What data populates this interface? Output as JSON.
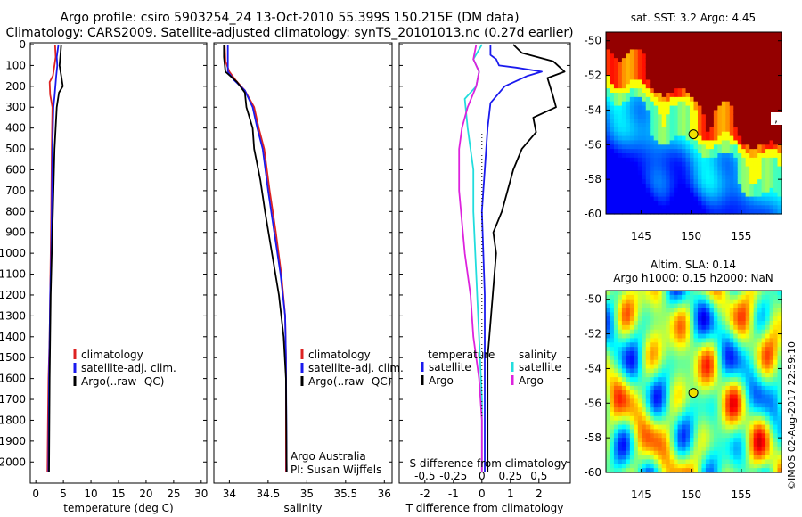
{
  "title": {
    "line1": "Argo profile: csiro 5903254_24 13-Oct-2010 55.399S 150.215E (DM data)",
    "line2": "Climatology: CARS2009. Satellite-adjusted climatology: synTS_20101013.nc (0.27d earlier)"
  },
  "stamp": "©IMOS 02-Aug-2017 22:59:10",
  "credits": {
    "line1": "Argo Australia",
    "line2": "PI: Susan Wijffels"
  },
  "colors": {
    "climatology": "#dd2222",
    "satellite": "#1a1aee",
    "argo": "#000000",
    "cyan": "#22dddd",
    "magenta": "#dd22dd"
  },
  "chart_data": [
    {
      "type": "line",
      "panel": "temperature",
      "xlabel": "temperature (deg C)",
      "ylim": [
        2080,
        0
      ],
      "xlim": [
        -1,
        31
      ],
      "xticks": [
        "0",
        "5",
        "10",
        "15",
        "20",
        "25",
        "30"
      ],
      "yticks": [
        "0",
        "100",
        "200",
        "300",
        "400",
        "500",
        "600",
        "700",
        "800",
        "900",
        "1000",
        "1100",
        "1200",
        "1300",
        "1400",
        "1500",
        "1600",
        "1700",
        "1800",
        "1900",
        "2000"
      ],
      "legend": [
        "climatology",
        "satellite-adj. clim.",
        "Argo(..raw -QC)"
      ],
      "series": [
        {
          "name": "climatology",
          "color_key": "climatology",
          "x": [
            3.5,
            3.6,
            3.1,
            2.5,
            2.6,
            3.0,
            2.9,
            2.8,
            2.7,
            2.6,
            2.5,
            2.3,
            2.2,
            2.1
          ],
          "y": [
            0,
            60,
            150,
            180,
            240,
            300,
            500,
            800,
            1000,
            1200,
            1400,
            1600,
            1800,
            2050
          ]
        },
        {
          "name": "satellite-adj. clim.",
          "color_key": "satellite",
          "x": [
            4.1,
            3.8,
            3.9,
            3.7,
            3.4,
            3.2,
            3.0,
            2.9,
            2.8,
            2.6,
            2.5,
            2.4,
            2.3
          ],
          "y": [
            0,
            60,
            100,
            150,
            250,
            300,
            500,
            800,
            1000,
            1200,
            1400,
            1600,
            2050
          ]
        },
        {
          "name": "Argo(..raw -QC)",
          "color_key": "argo",
          "x": [
            4.6,
            4.5,
            4.3,
            4.6,
            4.9,
            4.2,
            3.8,
            3.4,
            3.1,
            2.9,
            2.7,
            2.6,
            2.5,
            2.4
          ],
          "y": [
            0,
            40,
            100,
            150,
            200,
            230,
            300,
            500,
            800,
            1000,
            1200,
            1400,
            1600,
            2050
          ]
        }
      ]
    },
    {
      "type": "line",
      "panel": "salinity",
      "xlabel": "salinity",
      "ylim": [
        2080,
        0
      ],
      "xlim": [
        33.8,
        36.1
      ],
      "xticks": [
        "34",
        "34.5",
        "35",
        "35.5",
        "36"
      ],
      "legend": [
        "climatology",
        "satellite-adj. clim.",
        "Argo(..raw -QC)"
      ],
      "series": [
        {
          "name": "climatology",
          "color_key": "climatology",
          "x": [
            33.94,
            33.95,
            34.0,
            34.08,
            34.2,
            34.32,
            34.38,
            34.45,
            34.52,
            34.6,
            34.67,
            34.72,
            34.73,
            34.73
          ],
          "y": [
            0,
            80,
            130,
            170,
            220,
            300,
            400,
            500,
            700,
            900,
            1100,
            1300,
            1500,
            2050
          ]
        },
        {
          "name": "satellite-adj. clim.",
          "color_key": "satellite",
          "x": [
            33.98,
            33.98,
            33.98,
            34.06,
            34.2,
            34.3,
            34.36,
            34.43,
            34.5,
            34.58,
            34.66,
            34.72,
            34.73,
            34.74
          ],
          "y": [
            0,
            80,
            130,
            170,
            220,
            300,
            400,
            500,
            700,
            900,
            1100,
            1300,
            1500,
            2050
          ]
        },
        {
          "name": "Argo(..raw -QC)",
          "color_key": "argo",
          "x": [
            33.93,
            33.93,
            33.95,
            34.1,
            34.2,
            34.22,
            34.3,
            34.32,
            34.4,
            34.46,
            34.55,
            34.64,
            34.7,
            34.73,
            34.74
          ],
          "y": [
            0,
            60,
            130,
            180,
            230,
            300,
            400,
            500,
            650,
            800,
            1000,
            1200,
            1400,
            1600,
            2050
          ]
        }
      ]
    },
    {
      "type": "line",
      "panel": "difference",
      "xlabel": "T difference from climatology",
      "xlabel_top": "S difference from climatology",
      "ylim": [
        2080,
        0
      ],
      "xlim": [
        -2.9,
        3.1
      ],
      "xticks": [
        "-2",
        "-1",
        "0",
        "1",
        "2"
      ],
      "xticks_s": [
        "-0.5",
        "-0.25",
        "0",
        "0.25",
        "0.5"
      ],
      "legend_headers": [
        "temperature",
        "salinity"
      ],
      "legend_left": [
        "satellite",
        "Argo"
      ],
      "legend_right": [
        "satellite",
        "Argo"
      ],
      "series": [
        {
          "name": "temperature satellite",
          "color_key": "satellite",
          "x": [
            0.3,
            0.3,
            0.5,
            0.6,
            1.2,
            2.1,
            1.6,
            0.8,
            0.3,
            0.2,
            0.0,
            0.1,
            0.1,
            0.1
          ],
          "y": [
            0,
            50,
            70,
            100,
            110,
            130,
            150,
            200,
            280,
            400,
            800,
            1200,
            1600,
            2050
          ]
        },
        {
          "name": "temperature Argo",
          "color_key": "argo",
          "x": [
            1.1,
            1.4,
            2.5,
            2.9,
            2.3,
            2.5,
            2.6,
            1.8,
            1.9,
            1.4,
            1.1,
            0.9,
            0.7,
            0.4,
            0.5,
            0.2,
            0.2
          ],
          "y": [
            0,
            40,
            80,
            130,
            160,
            250,
            300,
            350,
            420,
            500,
            600,
            700,
            800,
            900,
            1000,
            1500,
            2050
          ]
        },
        {
          "name": "salinity satellite",
          "color_key": "cyan",
          "x": [
            0.0,
            -0.3,
            -0.1,
            -0.2,
            -0.6,
            -0.5,
            -0.3,
            -0.3,
            -0.2,
            -0.1,
            0.0,
            0.0
          ],
          "y": [
            0,
            70,
            130,
            200,
            260,
            400,
            600,
            800,
            1100,
            1400,
            1700,
            2050
          ]
        },
        {
          "name": "salinity Argo",
          "color_key": "magenta",
          "x": [
            -0.2,
            -0.3,
            -0.1,
            -0.2,
            -0.5,
            -0.7,
            -0.8,
            -0.8,
            -0.6,
            -0.4,
            -0.3,
            -0.1,
            0.0,
            0.0
          ],
          "y": [
            0,
            70,
            130,
            200,
            300,
            400,
            500,
            700,
            1000,
            1200,
            1400,
            1600,
            1800,
            2050
          ]
        }
      ]
    },
    {
      "type": "heatmap",
      "panel": "sst_map",
      "title": "sat. SST: 3.2 Argo: 4.45",
      "xticks": [
        "145",
        "150",
        "155"
      ],
      "yticks": [
        "-50",
        "-52",
        "-54",
        "-56",
        "-58",
        "-60"
      ],
      "xlim": [
        141.5,
        159.0
      ],
      "ylim": [
        -60.0,
        -49.5
      ],
      "marker": {
        "lon": 150.215,
        "lat": -55.399
      },
      "side_mark": ","
    },
    {
      "type": "heatmap",
      "panel": "sla_map",
      "title_line1": "Altim. SLA: 0.14",
      "title_line2": "Argo h1000: 0.15 h2000: NaN",
      "xticks": [
        "145",
        "150",
        "155"
      ],
      "yticks": [
        "-50",
        "-52",
        "-54",
        "-56",
        "-58",
        "-60"
      ],
      "xlim": [
        141.5,
        159.0
      ],
      "ylim": [
        -60.0,
        -49.5
      ],
      "marker": {
        "lon": 150.215,
        "lat": -55.399
      }
    }
  ]
}
